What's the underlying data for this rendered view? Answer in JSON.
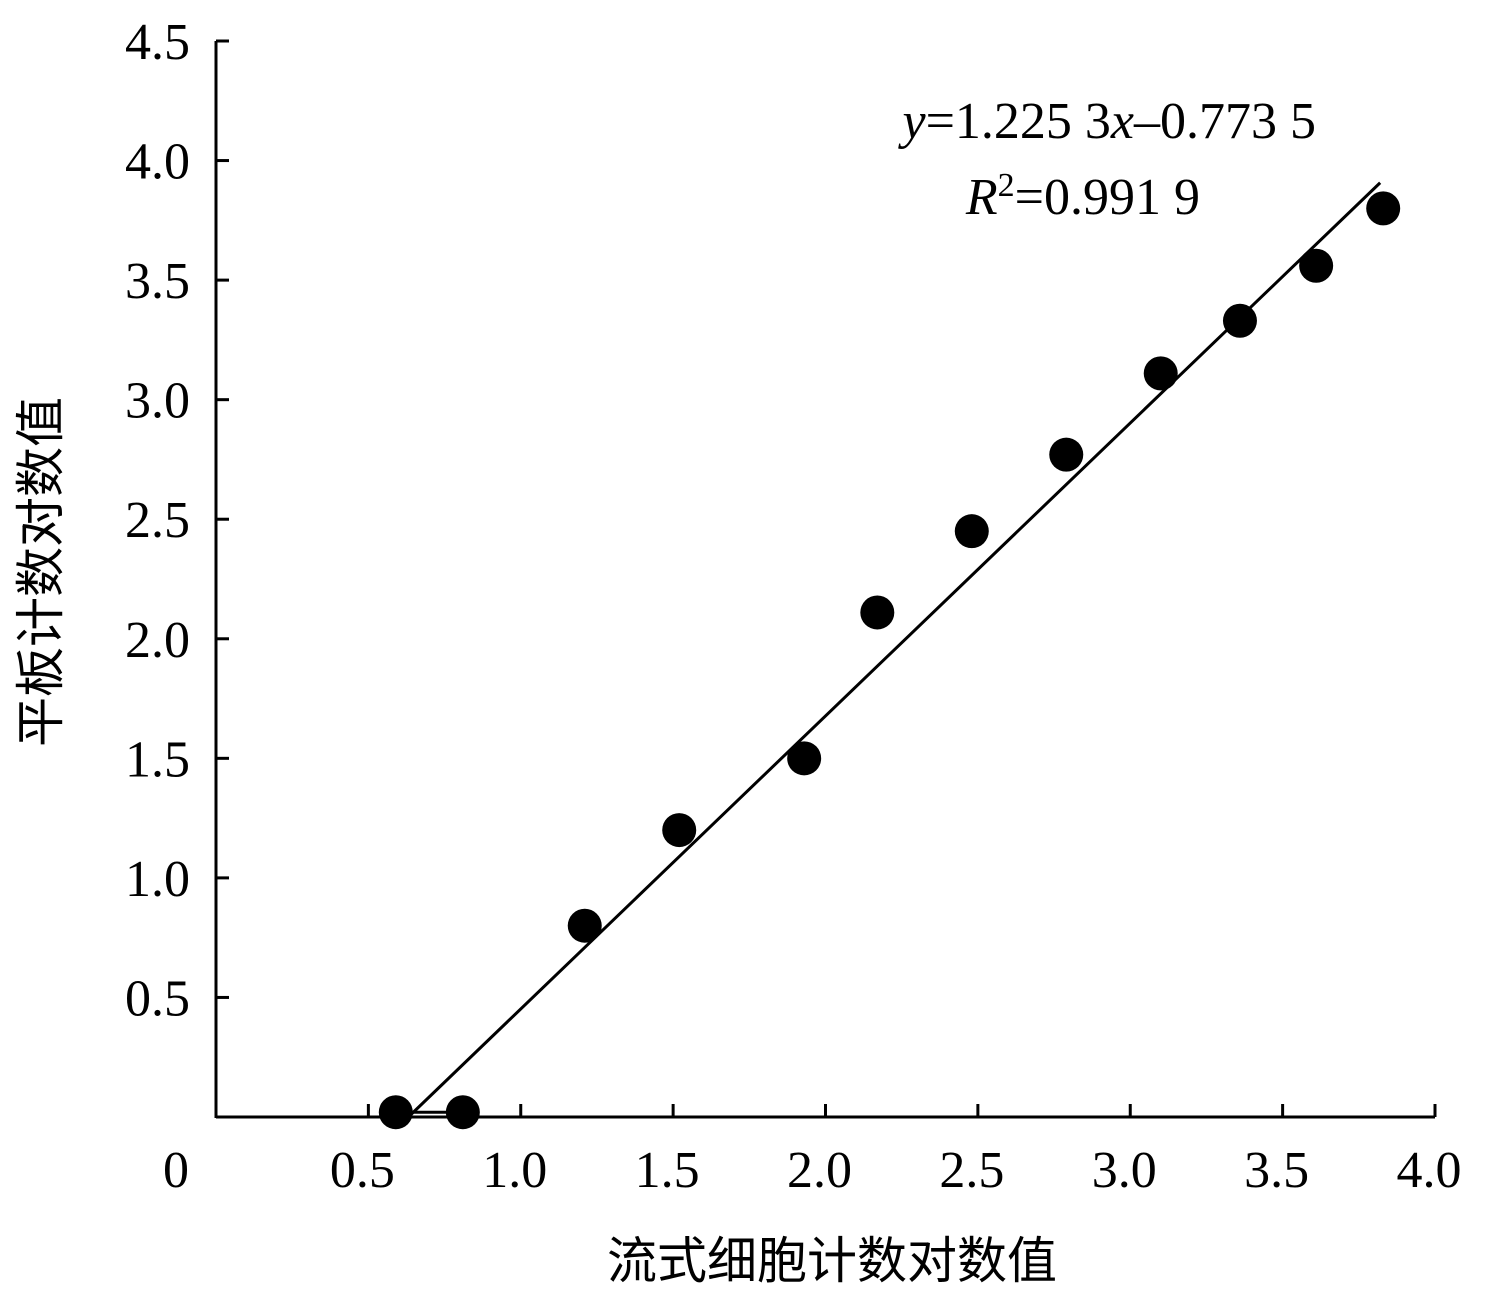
{
  "chart_data": {
    "type": "scatter",
    "xlabel": "流式细胞计数对数值",
    "ylabel": "平板计数对数值",
    "xlim": [
      0,
      4.0
    ],
    "ylim": [
      0,
      4.5
    ],
    "x_ticks": [
      0.5,
      1.0,
      1.5,
      2.0,
      2.5,
      3.0,
      3.5,
      4.0
    ],
    "y_ticks": [
      0.5,
      1.0,
      1.5,
      2.0,
      2.5,
      3.0,
      3.5,
      4.0,
      4.5
    ],
    "x_tick_labels": [
      "0.5",
      "1.0",
      "1.5",
      "2.0",
      "2.5",
      "3.0",
      "3.5",
      "4.0"
    ],
    "y_tick_labels": [
      "0.5",
      "1.0",
      "1.5",
      "2.0",
      "2.5",
      "3.0",
      "3.5",
      "4.0",
      "4.5"
    ],
    "origin_label": "0",
    "grid": false,
    "points": [
      {
        "x": 0.59,
        "y": 0.02
      },
      {
        "x": 0.81,
        "y": 0.02
      },
      {
        "x": 1.21,
        "y": 0.8
      },
      {
        "x": 1.52,
        "y": 1.2
      },
      {
        "x": 1.93,
        "y": 1.5
      },
      {
        "x": 2.17,
        "y": 2.11
      },
      {
        "x": 2.48,
        "y": 2.45
      },
      {
        "x": 2.79,
        "y": 2.77
      },
      {
        "x": 3.1,
        "y": 3.11
      },
      {
        "x": 3.36,
        "y": 3.33
      },
      {
        "x": 3.61,
        "y": 3.56
      },
      {
        "x": 3.83,
        "y": 3.8
      }
    ],
    "trendline": {
      "slope": 1.2253,
      "intercept": -0.7735,
      "x_range": [
        0.63,
        3.82
      ]
    },
    "baseline_segment": {
      "x_range": [
        0.59,
        0.81
      ],
      "y": 0.02
    },
    "annotation": {
      "equation_y": "y",
      "equation_rest": "=1.225 3",
      "equation_x": "x",
      "equation_tail": "–0.773 5",
      "r_symbol": "R",
      "r_sup": "2",
      "r_value": "=0.991 9"
    },
    "colors": {
      "marker": "#000000",
      "line": "#000000",
      "axis": "#000000"
    }
  }
}
